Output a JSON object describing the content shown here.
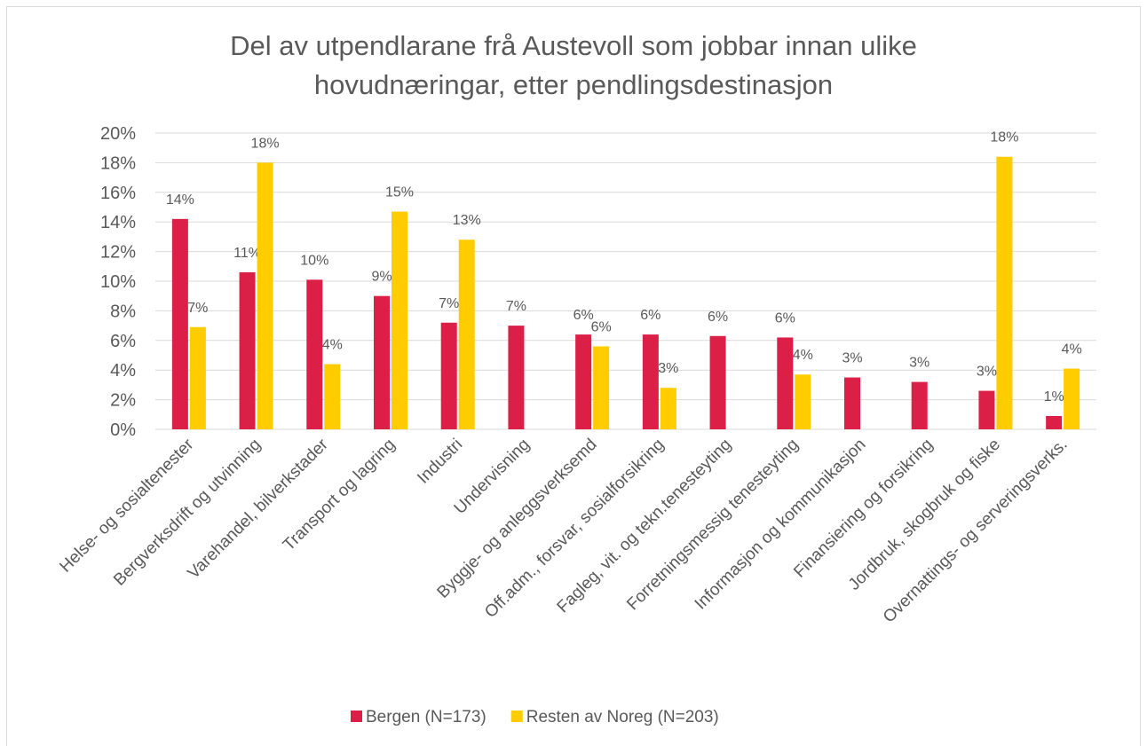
{
  "chart_data": {
    "type": "bar",
    "title": "Del av utpendlarane frå Austevoll som jobbar innan ulike hovudnæringar, etter pendlingsdestinasjon",
    "categories": [
      "Helse- og sosialtenester",
      "Bergverksdrift og utvinning",
      "Varehandel, bilverkstader",
      "Transport og lagring",
      "Industri",
      "Undervisning",
      "Byggje- og anleggsverksemd",
      "Off.adm., forsvar, sosialforsikring",
      "Fagleg, vit. og tekn.tenesteyting",
      "Forretningsmessig tenesteyting",
      "Informasjon og kommunikasjon",
      "Finansiering og forsikring",
      "Jordbruk, skogbruk og fiske",
      "Overnattings- og serveringsverks."
    ],
    "series": [
      {
        "name": "Bergen (N=173)",
        "color": "#dc1f47",
        "values": [
          14.2,
          10.6,
          10.1,
          9.0,
          7.2,
          7.0,
          6.4,
          6.4,
          6.3,
          6.2,
          3.5,
          3.2,
          2.6,
          0.9
        ],
        "value_labels": [
          "14%",
          "11%",
          "10%",
          "9%",
          "7%",
          "7%",
          "6%",
          "6%",
          "6%",
          "6%",
          "3%",
          "3%",
          "3%",
          "1%"
        ]
      },
      {
        "name": "Resten av Noreg (N=203)",
        "color": "#ffcc00",
        "values": [
          6.9,
          18.0,
          4.4,
          14.7,
          12.8,
          null,
          5.6,
          2.8,
          null,
          3.7,
          null,
          null,
          18.4,
          4.1
        ],
        "value_labels": [
          "7%",
          "18%",
          "4%",
          "15%",
          "13%",
          null,
          "6%",
          "3%",
          null,
          "4%",
          null,
          null,
          "18%",
          "4%"
        ]
      }
    ],
    "ylim": [
      0,
      20
    ],
    "yticks": [
      {
        "value": 0,
        "label": "0%"
      },
      {
        "value": 2,
        "label": "2%"
      },
      {
        "value": 4,
        "label": "4%"
      },
      {
        "value": 6,
        "label": "6%"
      },
      {
        "value": 8,
        "label": "8%"
      },
      {
        "value": 10,
        "label": "10%"
      },
      {
        "value": 12,
        "label": "12%"
      },
      {
        "value": 14,
        "label": "14%"
      },
      {
        "value": 16,
        "label": "16%"
      },
      {
        "value": 18,
        "label": "18%"
      },
      {
        "value": 20,
        "label": "20%"
      }
    ],
    "grid": true,
    "legend": "bottom"
  }
}
